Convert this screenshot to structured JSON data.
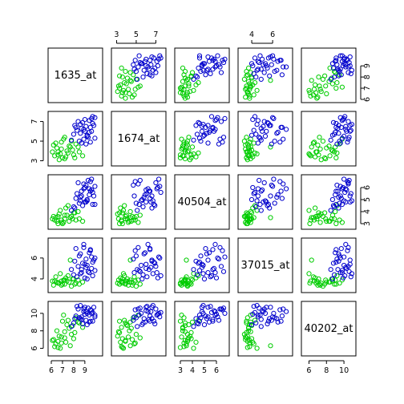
{
  "chart_data": {
    "type": "scatter",
    "variables": [
      "1635_at",
      "1674_at",
      "40504_at",
      "37015_at",
      "40202_at"
    ],
    "ranges": [
      [
        6.0,
        10.3
      ],
      [
        2.8,
        7.7
      ],
      [
        2.8,
        6.8
      ],
      [
        3.0,
        7.6
      ],
      [
        5.5,
        11.0
      ]
    ],
    "axis_ticks": [
      {
        "ticks": [
          6,
          7,
          8,
          9
        ],
        "labels": [
          "6",
          "7",
          "8",
          "9"
        ]
      },
      {
        "ticks": [
          3,
          5,
          7
        ],
        "labels": [
          "3",
          "5",
          "7"
        ]
      },
      {
        "ticks": [
          3,
          4,
          5,
          6
        ],
        "labels": [
          "3",
          "4",
          "5",
          "6"
        ]
      },
      {
        "ticks": [
          4,
          6
        ],
        "labels": [
          "4",
          "6"
        ]
      },
      {
        "ticks": [
          6,
          8,
          10
        ],
        "labels": [
          "6",
          "8",
          "10"
        ]
      }
    ],
    "bottom_tick_labels": [
      [
        "6",
        "7",
        "8",
        "9"
      ],
      [],
      [
        "3",
        "4",
        "5",
        "6"
      ],
      [],
      [
        "6",
        "8",
        "10"
      ]
    ],
    "top_tick_labels": [
      [],
      [
        "3",
        "5",
        "7"
      ],
      [],
      [
        "4",
        "6"
      ],
      []
    ],
    "left_tick_labels": [
      [],
      [
        "3",
        "5",
        "7"
      ],
      [],
      [
        "4",
        "6"
      ],
      [
        "6",
        "8",
        "10"
      ]
    ],
    "right_tick_labels": [
      [
        "6",
        "7",
        "8",
        "9"
      ],
      [],
      [
        "3",
        "4",
        "5",
        "6"
      ],
      [],
      []
    ],
    "series": [
      {
        "color": "#00cc00",
        "points": [
          [
            6.3,
            3.5,
            3.3,
            3.8,
            6.2
          ],
          [
            6.6,
            3.9,
            3.6,
            3.6,
            6.8
          ],
          [
            6.9,
            4.2,
            3.1,
            3.4,
            7.3
          ],
          [
            7.2,
            3.2,
            3.4,
            3.9,
            7.9
          ],
          [
            7.6,
            4.5,
            3.2,
            3.7,
            8.3
          ],
          [
            8.0,
            3.6,
            3.9,
            4.0,
            7.1
          ],
          [
            6.4,
            4.8,
            3.5,
            4.2,
            6.5
          ],
          [
            7.0,
            3.3,
            3.0,
            3.5,
            9.1
          ],
          [
            7.4,
            4.0,
            3.7,
            3.8,
            8.7
          ],
          [
            8.2,
            4.7,
            3.3,
            3.6,
            9.5
          ],
          [
            6.8,
            3.7,
            4.1,
            4.5,
            6.0
          ],
          [
            7.8,
            5.0,
            3.6,
            3.3,
            7.6
          ],
          [
            6.5,
            4.3,
            3.2,
            3.7,
            8.0
          ],
          [
            7.3,
            3.4,
            4.3,
            4.1,
            6.7
          ],
          [
            8.5,
            3.9,
            3.4,
            3.5,
            8.9
          ],
          [
            7.1,
            5.2,
            3.1,
            3.9,
            9.8
          ],
          [
            6.7,
            3.1,
            3.8,
            3.6,
            7.4
          ],
          [
            7.7,
            4.4,
            3.5,
            5.8,
            6.3
          ],
          [
            8.8,
            3.5,
            3.2,
            3.7,
            8.4
          ],
          [
            6.2,
            4.6,
            3.6,
            3.4,
            7.0
          ],
          [
            7.5,
            3.8,
            4.5,
            4.3,
            9.2
          ],
          [
            6.9,
            4.9,
            3.3,
            3.8,
            6.6
          ],
          [
            8.1,
            3.3,
            3.9,
            3.5,
            7.8
          ],
          [
            7.9,
            4.1,
            3.4,
            4.0,
            8.6
          ],
          [
            6.6,
            3.6,
            3.0,
            3.6,
            6.1
          ],
          [
            8.4,
            4.4,
            4.0,
            3.9,
            9.0
          ],
          [
            7.2,
            5.4,
            3.7,
            3.5,
            7.2
          ],
          [
            6.1,
            3.9,
            3.4,
            3.8,
            6.9
          ]
        ]
      },
      {
        "color": "#0000cc",
        "points": [
          [
            8.6,
            5.8,
            5.2,
            6.4,
            9.4
          ],
          [
            9.1,
            6.5,
            4.8,
            5.1,
            10.2
          ],
          [
            9.4,
            7.1,
            5.9,
            4.6,
            9.8
          ],
          [
            8.9,
            5.2,
            6.3,
            7.0,
            10.5
          ],
          [
            9.7,
            6.8,
            4.6,
            5.6,
            9.1
          ],
          [
            8.3,
            6.1,
            5.5,
            4.2,
            10.8
          ],
          [
            9.9,
            7.4,
            6.1,
            6.0,
            9.6
          ],
          [
            9.2,
            5.5,
            4.9,
            5.3,
            10.0
          ],
          [
            8.7,
            6.3,
            5.7,
            4.9,
            9.3
          ],
          [
            9.5,
            4.9,
            6.5,
            6.7,
            10.4
          ],
          [
            8.0,
            5.7,
            4.4,
            4.4,
            8.9
          ],
          [
            9.8,
            6.6,
            5.3,
            5.8,
            10.7
          ],
          [
            9.0,
            7.2,
            6.0,
            4.1,
            9.9
          ],
          [
            8.5,
            5.0,
            4.7,
            6.2,
            9.5
          ],
          [
            9.6,
            6.0,
            5.8,
            5.0,
            10.3
          ],
          [
            8.8,
            6.9,
            4.5,
            5.5,
            8.8
          ],
          [
            9.3,
            5.4,
            6.6,
            4.7,
            10.6
          ],
          [
            8.2,
            6.4,
            5.1,
            6.9,
            9.7
          ],
          [
            9.7,
            7.5,
            5.6,
            4.3,
            10.1
          ],
          [
            9.1,
            4.7,
            6.2,
            5.9,
            9.2
          ],
          [
            8.6,
            6.7,
            4.9,
            4.5,
            10.9
          ],
          [
            9.4,
            5.9,
            5.4,
            6.5,
            9.0
          ],
          [
            8.4,
            7.0,
            6.4,
            5.2,
            10.5
          ],
          [
            9.9,
            5.3,
            4.6,
            4.8,
            9.8
          ],
          [
            8.9,
            6.2,
            5.9,
            7.3,
            10.2
          ],
          [
            9.2,
            5.6,
            5.0,
            4.0,
            8.7
          ],
          [
            8.1,
            6.6,
            4.3,
            5.7,
            9.4
          ],
          [
            9.6,
            7.3,
            6.7,
            6.1,
            10.0
          ],
          [
            8.7,
            4.8,
            5.3,
            4.6,
            9.6
          ],
          [
            9.0,
            6.0,
            4.8,
            5.4,
            10.7
          ],
          [
            7.8,
            5.1,
            4.1,
            4.9,
            8.5
          ],
          [
            9.5,
            6.4,
            5.7,
            6.8,
            9.1
          ]
        ]
      }
    ]
  }
}
